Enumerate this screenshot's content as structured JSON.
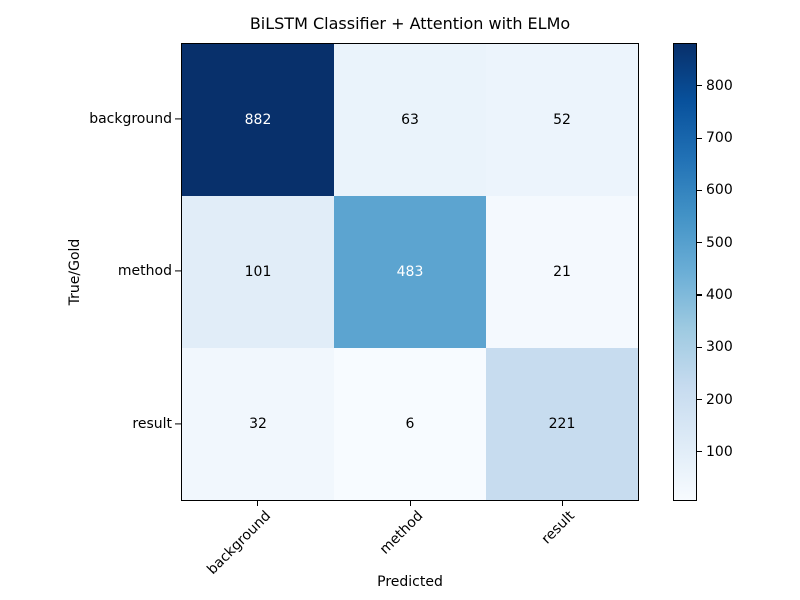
{
  "chart_data": {
    "type": "heatmap",
    "title": "BiLSTM Classifier + Attention with ELMo",
    "xlabel": "Predicted",
    "ylabel": "True/Gold",
    "x_categories": [
      "background",
      "method",
      "result"
    ],
    "y_categories": [
      "background",
      "method",
      "result"
    ],
    "matrix": [
      [
        882,
        63,
        52
      ],
      [
        101,
        483,
        21
      ],
      [
        32,
        6,
        221
      ]
    ],
    "vmin": 6,
    "vmax": 882,
    "colormap": "Blues",
    "grid": false,
    "cells": [
      {
        "row": "background",
        "col": "background",
        "value": 882,
        "color": "#08306b",
        "text_color": "#ffffff"
      },
      {
        "row": "background",
        "col": "method",
        "value": 63,
        "color": "#eaf3fb",
        "text_color": "#000000"
      },
      {
        "row": "background",
        "col": "result",
        "value": 52,
        "color": "#ecf4fc",
        "text_color": "#000000"
      },
      {
        "row": "method",
        "col": "background",
        "value": 101,
        "color": "#e1edf8",
        "text_color": "#000000"
      },
      {
        "row": "method",
        "col": "method",
        "value": 483,
        "color": "#5ca4d0",
        "text_color": "#ffffff"
      },
      {
        "row": "method",
        "col": "result",
        "value": 21,
        "color": "#f4f9fe",
        "text_color": "#000000"
      },
      {
        "row": "result",
        "col": "background",
        "value": 32,
        "color": "#f1f7fd",
        "text_color": "#000000"
      },
      {
        "row": "result",
        "col": "method",
        "value": 6,
        "color": "#f7fbff",
        "text_color": "#000000"
      },
      {
        "row": "result",
        "col": "result",
        "value": 221,
        "color": "#c7dcef",
        "text_color": "#000000"
      }
    ],
    "colorbar": {
      "position": "right",
      "ticks": [
        "100",
        "200",
        "300",
        "400",
        "500",
        "600",
        "700",
        "800"
      ],
      "tick_values": [
        100,
        200,
        300,
        400,
        500,
        600,
        700,
        800
      ],
      "gradient_stops_bottom_to_top": [
        "#f7fbff",
        "#deebf7",
        "#c6dbef",
        "#9ecae1",
        "#6baed6",
        "#4292c6",
        "#2171b5",
        "#08519c",
        "#08306b"
      ]
    }
  }
}
